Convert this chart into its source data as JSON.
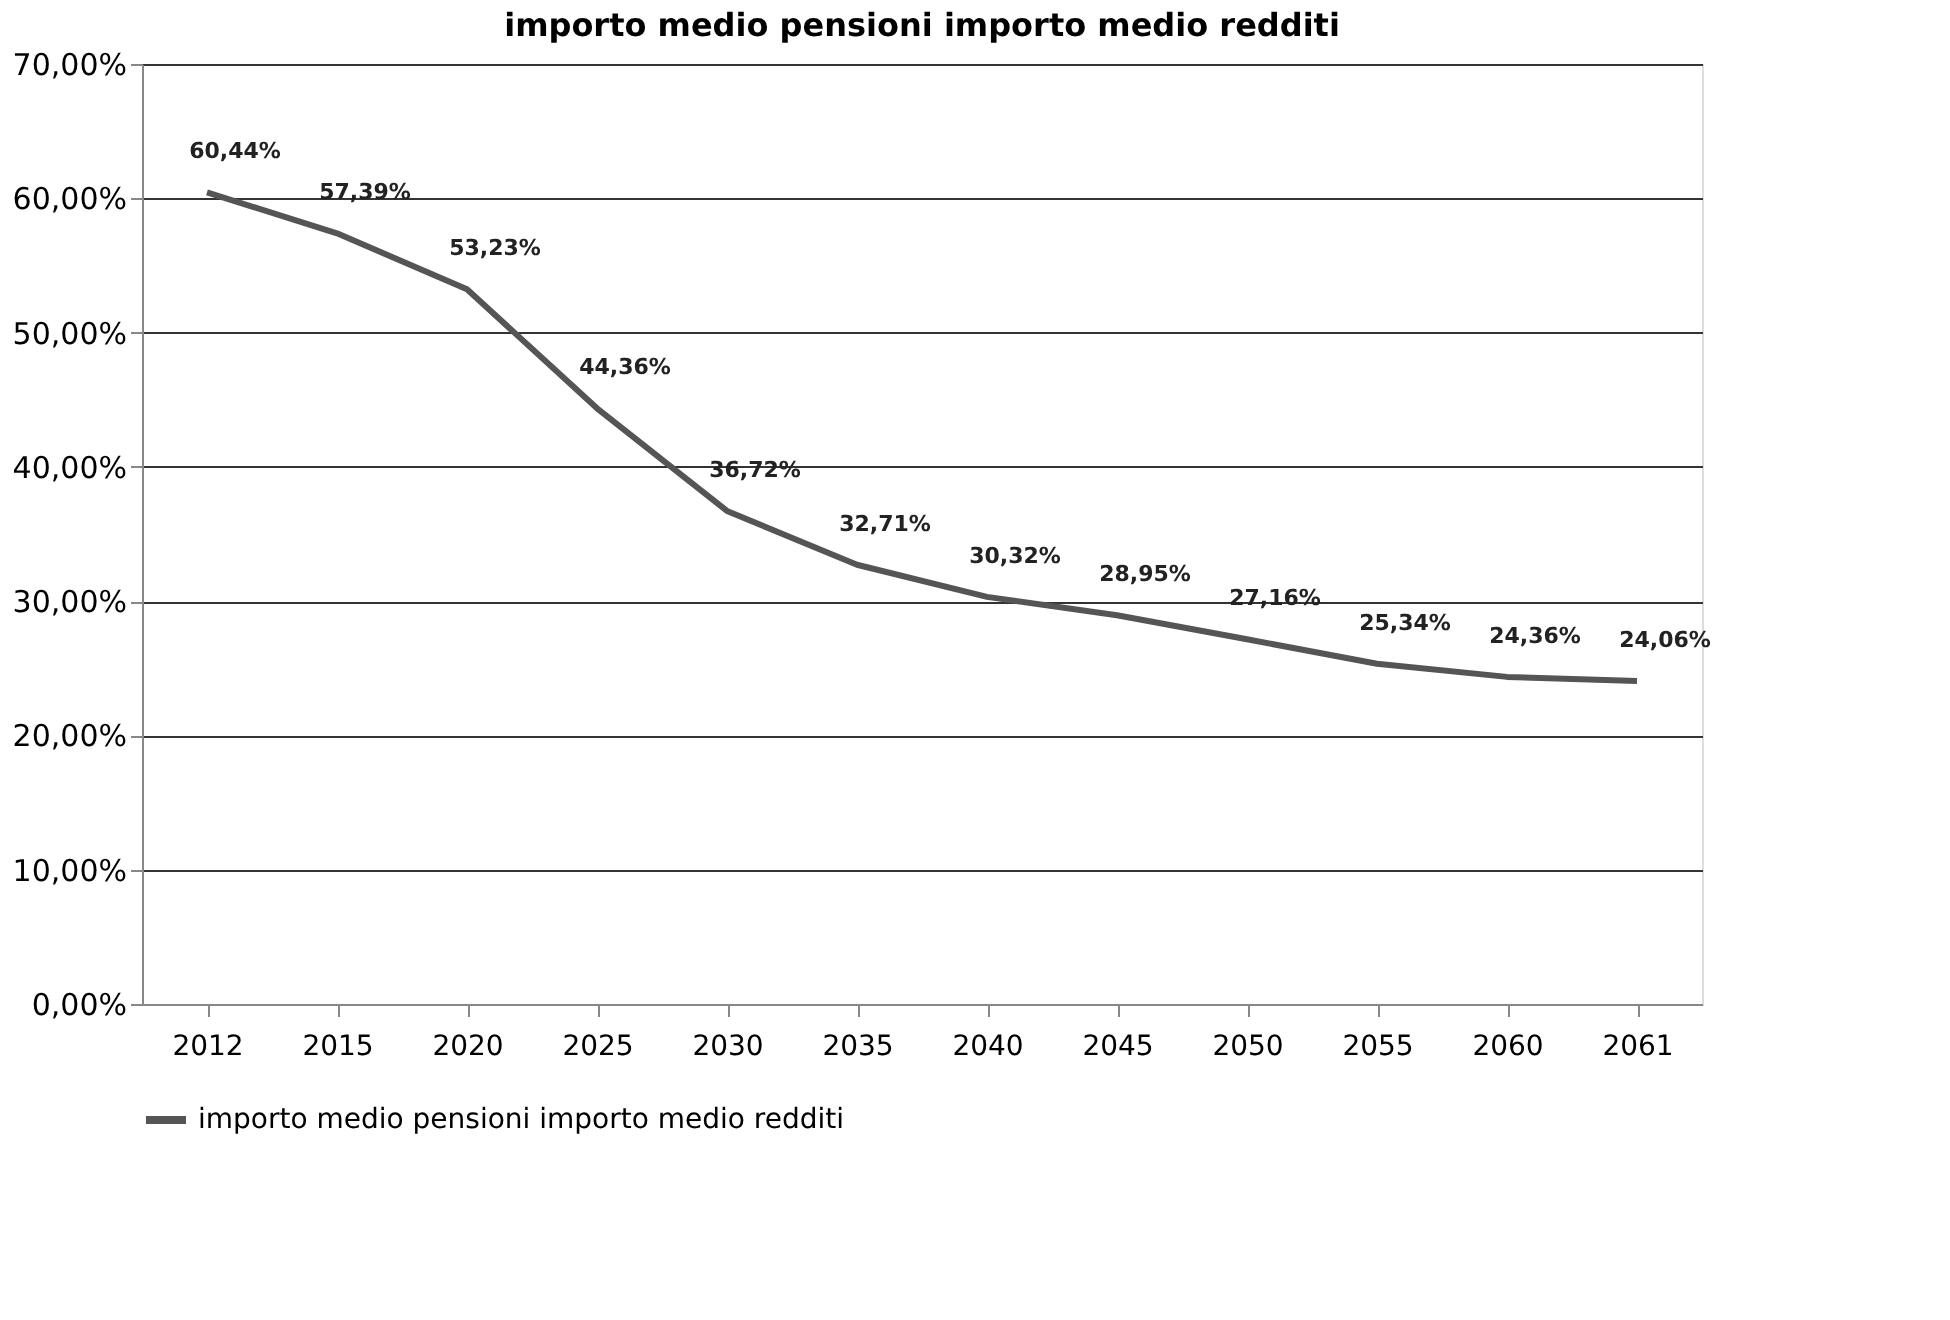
{
  "chart_data": {
    "type": "line",
    "title": "importo medio pensioni importo medio redditi",
    "categories": [
      "2012",
      "2015",
      "2020",
      "2025",
      "2030",
      "2035",
      "2040",
      "2045",
      "2050",
      "2055",
      "2060",
      "2061"
    ],
    "series": [
      {
        "name": "importo medio pensioni importo medio redditi",
        "color": "#555555",
        "values": [
          60.44,
          57.39,
          53.23,
          44.36,
          36.72,
          32.71,
          30.32,
          28.95,
          27.16,
          25.34,
          24.36,
          24.06
        ],
        "value_labels": [
          "60,44%",
          "57,39%",
          "53,23%",
          "44,36%",
          "36,72%",
          "32,71%",
          "30,32%",
          "28,95%",
          "27,16%",
          "25,34%",
          "24,36%",
          "24,06%"
        ]
      }
    ],
    "ylim": [
      0,
      70
    ],
    "yticks": [
      {
        "value": 0,
        "label": "0,00%"
      },
      {
        "value": 10,
        "label": "10,00%"
      },
      {
        "value": 20,
        "label": "20,00%"
      },
      {
        "value": 30,
        "label": "30,00%"
      },
      {
        "value": 40,
        "label": "40,00%"
      },
      {
        "value": 50,
        "label": "50,00%"
      },
      {
        "value": 60,
        "label": "60,00%"
      },
      {
        "value": 70,
        "label": "70,00%"
      }
    ],
    "grid": "y",
    "legend": "bottom",
    "marker": "none",
    "line_style": "solid"
  }
}
